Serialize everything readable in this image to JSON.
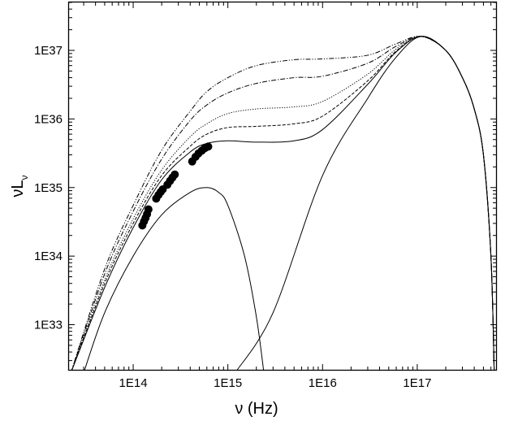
{
  "chart_data": {
    "type": "line",
    "title": "",
    "xlabel": "ν (Hz)",
    "ylabel_main": "νL",
    "ylabel_sub": "ν",
    "x_scale": "log",
    "y_scale": "log",
    "xlim": [
      21000000000000.0,
      6.8e+17
    ],
    "ylim": [
      2.2e+32,
      5e+37
    ],
    "x_ticks": [
      {
        "value": 100000000000000.0,
        "label": "1E14"
      },
      {
        "value": 1000000000000000.0,
        "label": "1E15"
      },
      {
        "value": 1e+16,
        "label": "1E16"
      },
      {
        "value": 1e+17,
        "label": "1E17"
      }
    ],
    "y_ticks": [
      {
        "value": 1e+33,
        "label": "1E33"
      },
      {
        "value": 1e+34,
        "label": "1E34"
      },
      {
        "value": 1e+35,
        "label": "1E35"
      },
      {
        "value": 1e+36,
        "label": "1E36"
      },
      {
        "value": 1e+37,
        "label": "1E37"
      }
    ],
    "grid": false,
    "legend": "none",
    "series": [
      {
        "style": "solid",
        "points": [
          [
            30000000000000.0,
            2e+32
          ],
          [
            50000000000000.0,
            1.5e+33
          ],
          [
            100000000000000.0,
            1e+34
          ],
          [
            200000000000000.0,
            4e+34
          ],
          [
            400000000000000.0,
            8.5e+34
          ],
          [
            600000000000000.0,
            1e+35
          ],
          [
            800000000000000.0,
            8.5e+34
          ],
          [
            1000000000000000.0,
            5.5e+34
          ],
          [
            1500000000000000.0,
            1e+34
          ],
          [
            2000000000000000.0,
            1.3e+33
          ],
          [
            2400000000000000.0,
            2e+32
          ]
        ]
      },
      {
        "style": "solid",
        "points": [
          [
            1200000000000000.0,
            2e+32
          ],
          [
            3000000000000000.0,
            1.5e+33
          ],
          [
            1e+16,
            1.5e+35
          ],
          [
            3e+16,
            2e+36
          ],
          [
            6e+16,
            8e+36
          ],
          [
            1.1e+17,
            1.6e+37
          ],
          [
            2e+17,
            1e+37
          ],
          [
            3e+17,
            4e+36
          ],
          [
            4e+17,
            1.4e+36
          ],
          [
            5e+17,
            3e+35
          ],
          [
            6e+17,
            1e+34
          ],
          [
            6.5e+17,
            2e+32
          ]
        ]
      },
      {
        "style": "solid",
        "points": [
          [
            22000000000000.0,
            2e+32
          ],
          [
            50000000000000.0,
            3.5e+33
          ],
          [
            100000000000000.0,
            2.6e+34
          ],
          [
            200000000000000.0,
            1.3e+35
          ],
          [
            400000000000000.0,
            3.3e+35
          ],
          [
            600000000000000.0,
            4.4e+35
          ],
          [
            1000000000000000.0,
            4.8e+35
          ],
          [
            2000000000000000.0,
            4.6e+35
          ],
          [
            5000000000000000.0,
            4.8e+35
          ],
          [
            1e+16,
            7e+35
          ],
          [
            3e+16,
            3.2e+36
          ],
          [
            6e+16,
            9.5e+36
          ],
          [
            1.1e+17,
            1.6e+37
          ],
          [
            2e+17,
            1e+37
          ],
          [
            3e+17,
            4e+36
          ],
          [
            4e+17,
            1.4e+36
          ],
          [
            5e+17,
            3e+35
          ],
          [
            6e+17,
            1e+34
          ],
          [
            6.5e+17,
            2e+32
          ]
        ]
      },
      {
        "style": "dashed",
        "points": [
          [
            22000000000000.0,
            2e+32
          ],
          [
            50000000000000.0,
            4e+33
          ],
          [
            100000000000000.0,
            3e+34
          ],
          [
            200000000000000.0,
            1.5e+35
          ],
          [
            400000000000000.0,
            4e+35
          ],
          [
            600000000000000.0,
            6e+35
          ],
          [
            1000000000000000.0,
            7.5e+35
          ],
          [
            2000000000000000.0,
            7.8e+35
          ],
          [
            5000000000000000.0,
            8.5e+35
          ],
          [
            1e+16,
            1.1e+36
          ],
          [
            3e+16,
            3.6e+36
          ],
          [
            6e+16,
            9.8e+36
          ],
          [
            1.1e+17,
            1.6e+37
          ],
          [
            2e+17,
            1e+37
          ],
          [
            3e+17,
            4e+36
          ],
          [
            4e+17,
            1.4e+36
          ],
          [
            5e+17,
            3e+35
          ],
          [
            6e+17,
            1e+34
          ],
          [
            6.5e+17,
            2e+32
          ]
        ]
      },
      {
        "style": "dotted",
        "points": [
          [
            22000000000000.0,
            2e+32
          ],
          [
            50000000000000.0,
            4.5e+33
          ],
          [
            100000000000000.0,
            3.5e+34
          ],
          [
            200000000000000.0,
            1.8e+35
          ],
          [
            400000000000000.0,
            5.5e+35
          ],
          [
            600000000000000.0,
            8.5e+35
          ],
          [
            1000000000000000.0,
            1.2e+36
          ],
          [
            2000000000000000.0,
            1.4e+36
          ],
          [
            5000000000000000.0,
            1.5e+36
          ],
          [
            1e+16,
            1.8e+36
          ],
          [
            3e+16,
            4.5e+36
          ],
          [
            6e+16,
            1.05e+37
          ],
          [
            1.1e+17,
            1.6e+37
          ],
          [
            2e+17,
            1e+37
          ],
          [
            3e+17,
            4e+36
          ],
          [
            4e+17,
            1.4e+36
          ],
          [
            5e+17,
            3e+35
          ],
          [
            6e+17,
            1e+34
          ],
          [
            6.5e+17,
            2e+32
          ]
        ]
      },
      {
        "style": "dashdot",
        "points": [
          [
            22000000000000.0,
            2e+32
          ],
          [
            50000000000000.0,
            5.5e+33
          ],
          [
            100000000000000.0,
            4.5e+34
          ],
          [
            200000000000000.0,
            2.6e+35
          ],
          [
            400000000000000.0,
            9.5e+35
          ],
          [
            600000000000000.0,
            1.6e+36
          ],
          [
            1000000000000000.0,
            2.4e+36
          ],
          [
            2000000000000000.0,
            3.3e+36
          ],
          [
            5000000000000000.0,
            4e+36
          ],
          [
            1e+16,
            4.2e+36
          ],
          [
            3e+16,
            6.5e+36
          ],
          [
            6e+16,
            1.15e+37
          ],
          [
            1.1e+17,
            1.6e+37
          ],
          [
            2e+17,
            1e+37
          ],
          [
            3e+17,
            4e+36
          ],
          [
            4e+17,
            1.4e+36
          ],
          [
            5e+17,
            3e+35
          ],
          [
            6e+17,
            1e+34
          ],
          [
            6.5e+17,
            2e+32
          ]
        ]
      },
      {
        "style": "dashdotdot",
        "points": [
          [
            22000000000000.0,
            2e+32
          ],
          [
            50000000000000.0,
            6.5e+33
          ],
          [
            100000000000000.0,
            5.5e+34
          ],
          [
            200000000000000.0,
            3.5e+35
          ],
          [
            400000000000000.0,
            1.3e+36
          ],
          [
            600000000000000.0,
            2.5e+36
          ],
          [
            1000000000000000.0,
            4e+36
          ],
          [
            2000000000000000.0,
            6e+36
          ],
          [
            5000000000000000.0,
            7.3e+36
          ],
          [
            1e+16,
            7.5e+36
          ],
          [
            3e+16,
            8.5e+36
          ],
          [
            6e+16,
            1.25e+37
          ],
          [
            1.1e+17,
            1.6e+37
          ],
          [
            2e+17,
            1e+37
          ],
          [
            3e+17,
            4e+36
          ],
          [
            4e+17,
            1.4e+36
          ],
          [
            5e+17,
            3e+35
          ],
          [
            6e+17,
            1e+34
          ],
          [
            6.5e+17,
            2e+32
          ]
        ]
      }
    ],
    "observed_points": [
      [
        125000000000000.0,
        2.8e+34
      ],
      [
        130000000000000.0,
        3.2e+34
      ],
      [
        135000000000000.0,
        3.6e+34
      ],
      [
        140000000000000.0,
        4.1e+34
      ],
      [
        145000000000000.0,
        4.8e+34
      ],
      [
        175000000000000.0,
        6.9e+34
      ],
      [
        185000000000000.0,
        7.8e+34
      ],
      [
        195000000000000.0,
        8.6e+34
      ],
      [
        205000000000000.0,
        9.4e+34
      ],
      [
        230000000000000.0,
        1.1e+35
      ],
      [
        245000000000000.0,
        1.25e+35
      ],
      [
        260000000000000.0,
        1.4e+35
      ],
      [
        275000000000000.0,
        1.55e+35
      ],
      [
        420000000000000.0,
        2.4e+35
      ],
      [
        455000000000000.0,
        2.8e+35
      ],
      [
        490000000000000.0,
        3.15e+35
      ],
      [
        530000000000000.0,
        3.45e+35
      ],
      [
        570000000000000.0,
        3.75e+35
      ],
      [
        620000000000000.0,
        3.95e+35
      ]
    ]
  }
}
